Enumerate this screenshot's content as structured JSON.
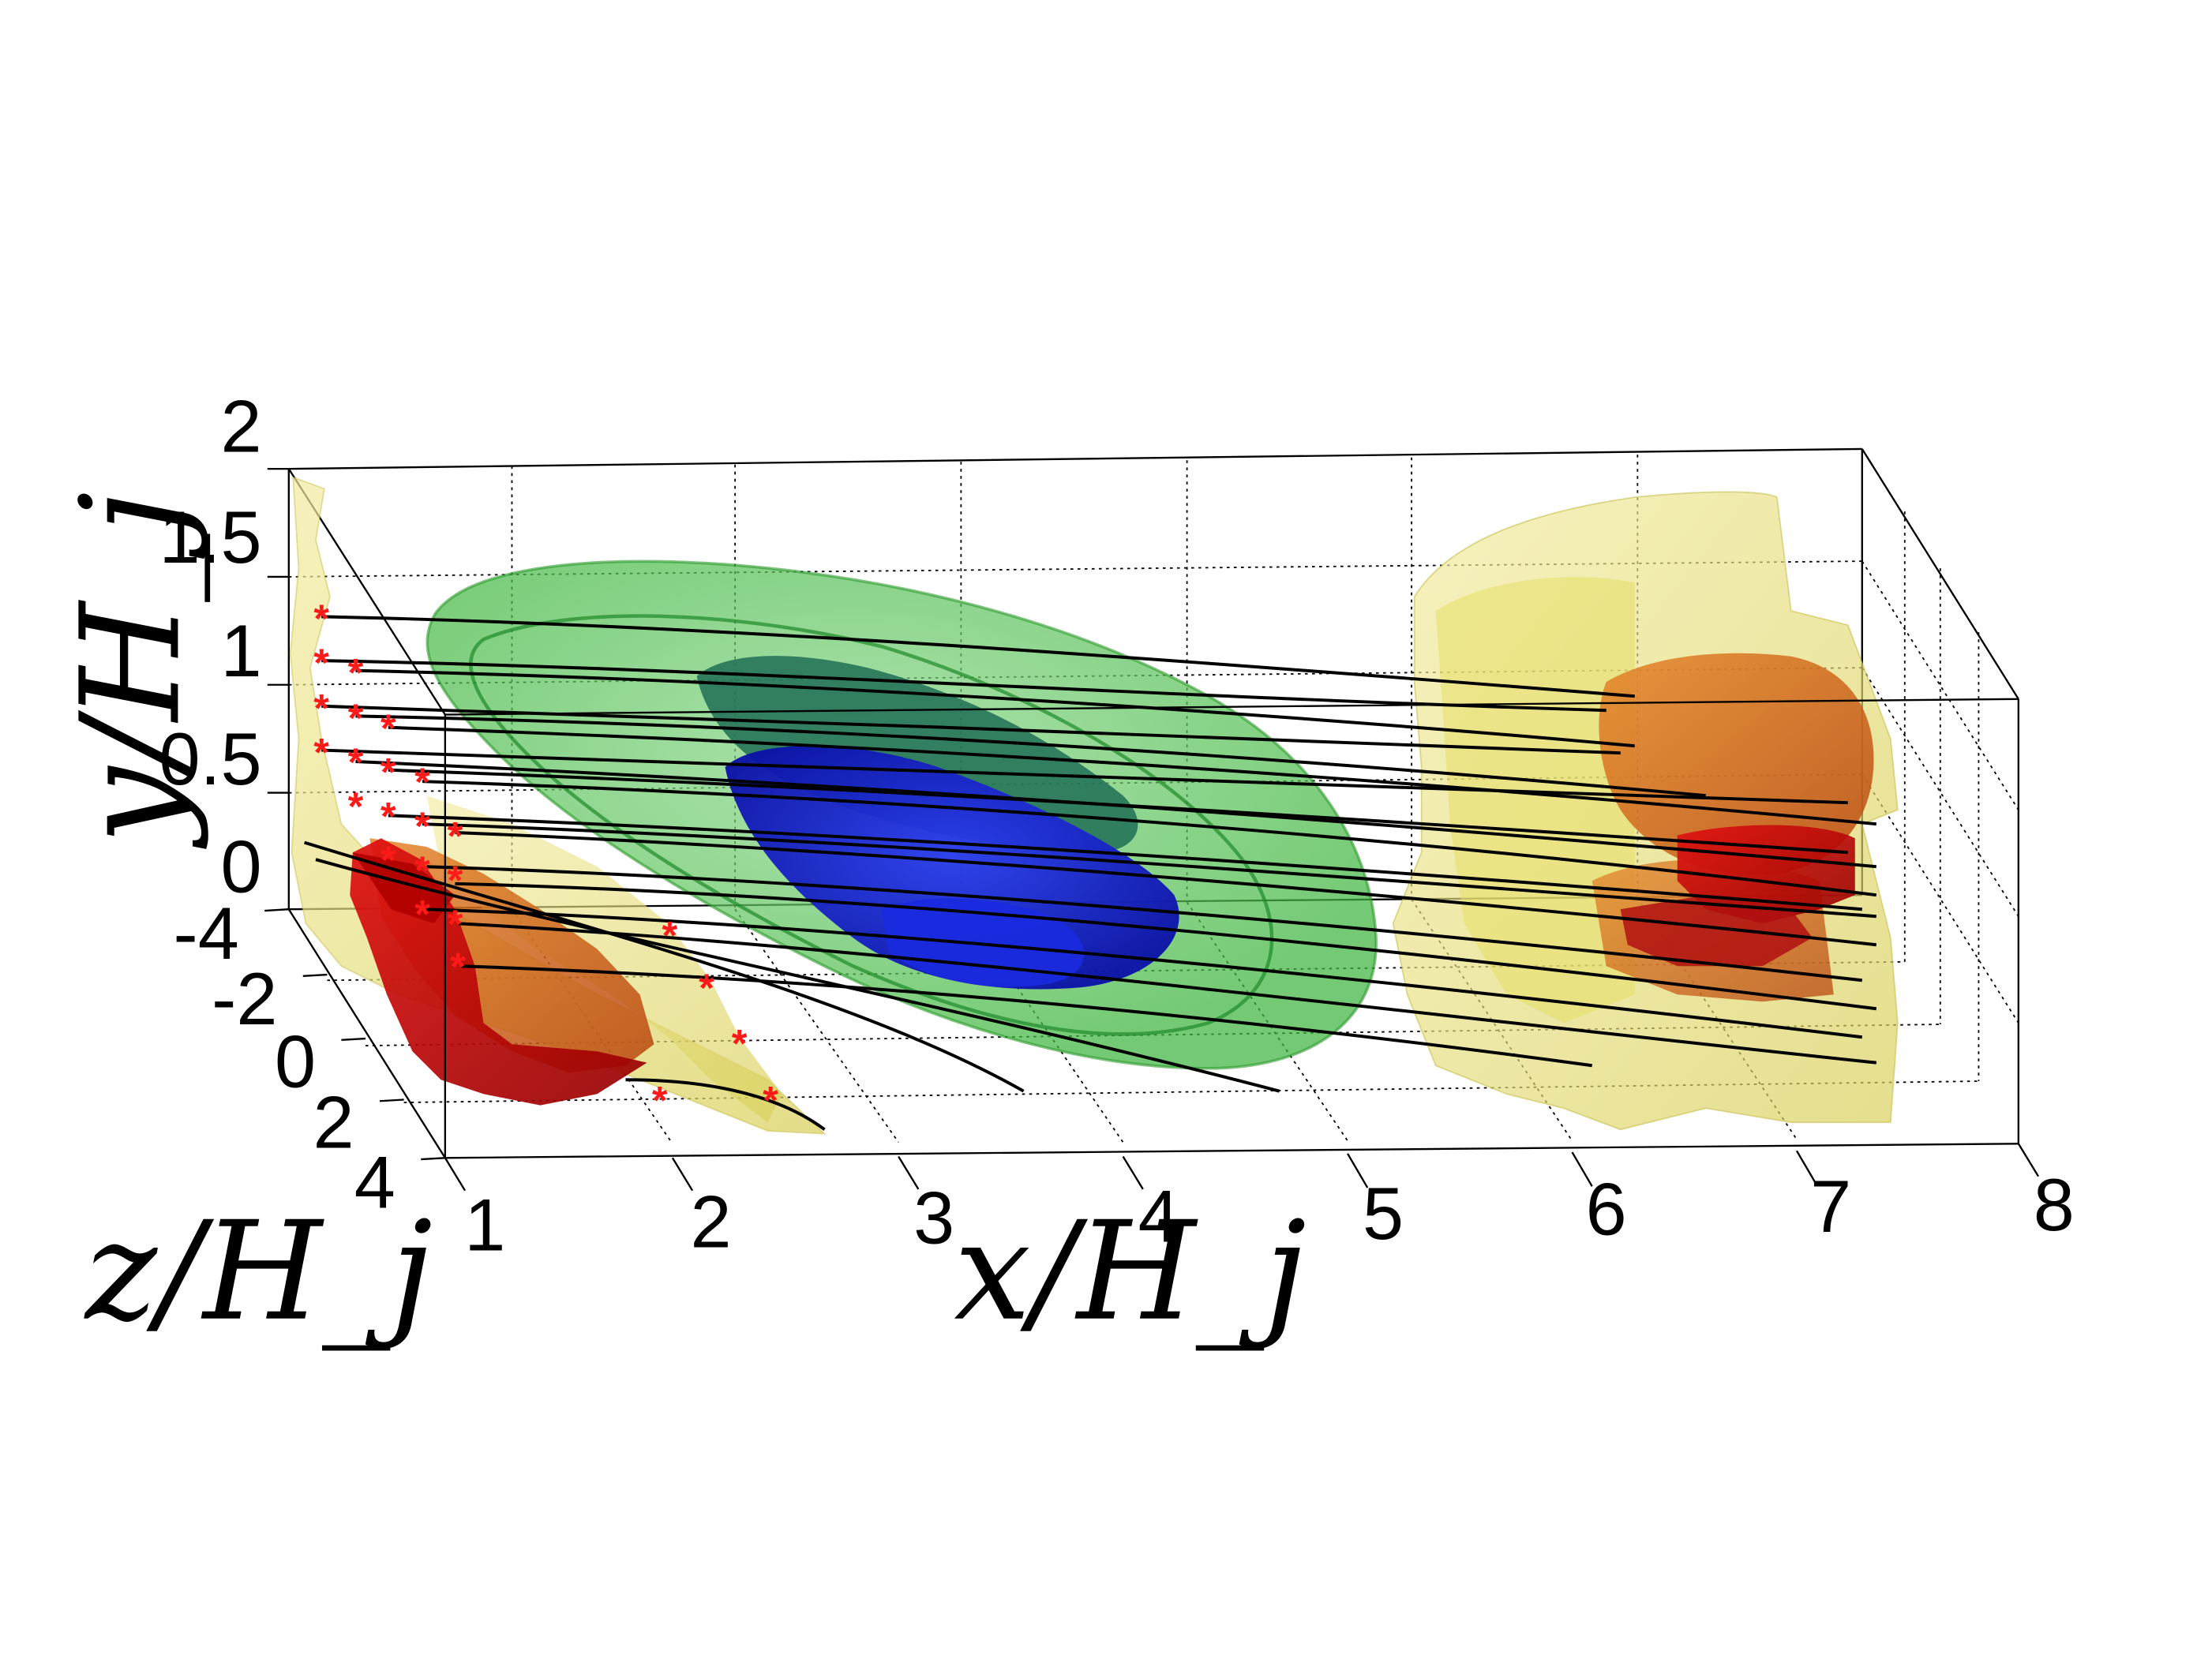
{
  "chart_data": {
    "type": "3d-isosurface",
    "xlabel": "x/H_j",
    "ylabel": "y/H_j",
    "zlabel": "z/H_j",
    "x_ticks": [
      "1",
      "2",
      "3",
      "4",
      "5",
      "6",
      "7",
      "8"
    ],
    "y_ticks": [
      "0",
      "0.5",
      "1",
      "1.5",
      "2"
    ],
    "z_ticks": [
      "-4",
      "-2",
      "0",
      "2",
      "4"
    ],
    "xlim": [
      1,
      8
    ],
    "ylim": [
      0,
      2
    ],
    "zlim": [
      -4,
      4
    ],
    "grid": true,
    "colors": {
      "isosurface_yellow": "#e8e070",
      "isosurface_orange": "#d2691e",
      "isosurface_red": "#cc0000",
      "isosurface_green": "#3fbf3f",
      "isosurface_dark_green": "#1f6f4f",
      "isosurface_blue": "#0a1acc",
      "streamlines": "#000000",
      "seed_markers": "#ff1a1a"
    },
    "streamlines": {
      "marker": "*"
    }
  }
}
